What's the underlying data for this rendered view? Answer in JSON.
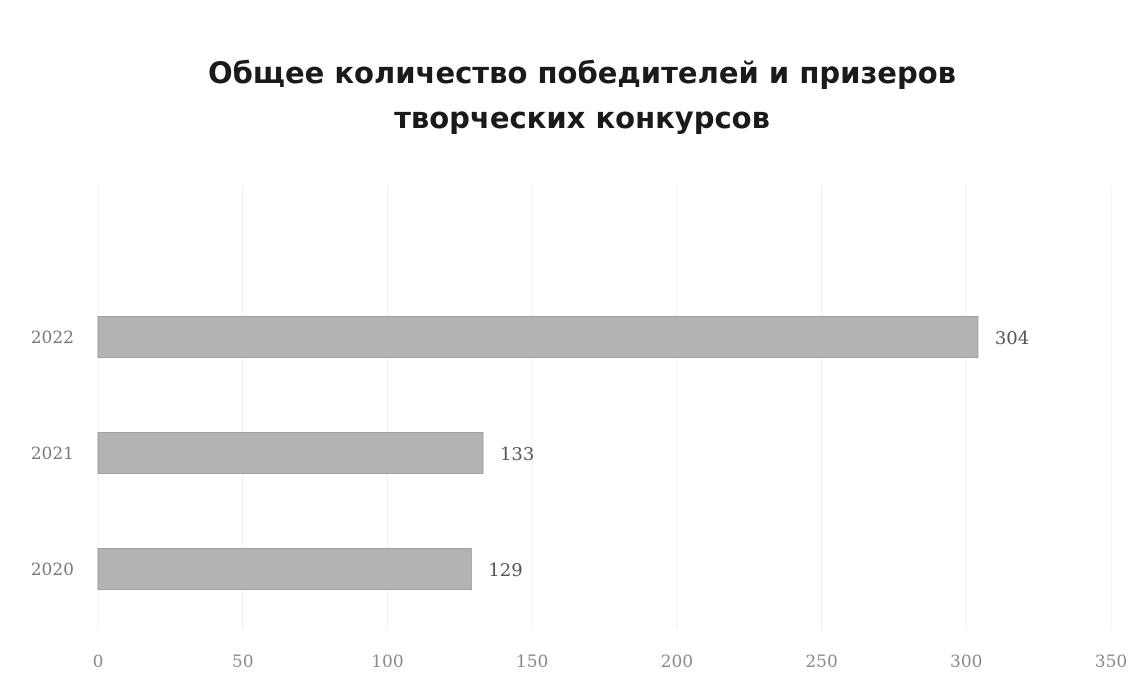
{
  "chart_data": {
    "type": "bar",
    "orientation": "horizontal",
    "title_lines": [
      "Общее количество победителей и призеров",
      "творческих конкурсов"
    ],
    "categories": [
      "2022",
      "2021",
      "2020"
    ],
    "values": [
      304,
      133,
      129
    ],
    "data_labels": [
      "304",
      "133",
      "129"
    ],
    "xlabel": "",
    "ylabel": "",
    "xlim": [
      0,
      350
    ],
    "x_ticks": [
      0,
      50,
      100,
      150,
      200,
      250,
      300,
      350
    ],
    "x_tick_labels": [
      "0",
      "50",
      "100",
      "150",
      "200",
      "250",
      "300",
      "350"
    ],
    "grid": true,
    "legend": "none",
    "bar_color": "#b3b3b3"
  }
}
